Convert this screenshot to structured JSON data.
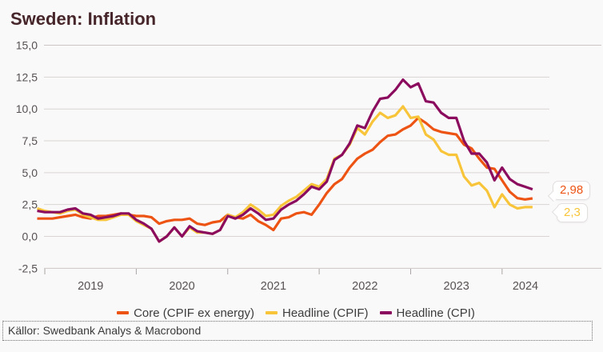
{
  "title": "Sweden: Inflation",
  "source_note": "Källor: Swedbank Analys & Macrobond",
  "colors": {
    "core": "#ed5414",
    "cpif": "#f8c53a",
    "cpi": "#8b0c5e",
    "title_text": "#46262a",
    "axis_text": "#575152",
    "gridline": "#dad4d4",
    "frame_line": "#ccc6c6"
  },
  "legend": {
    "items": [
      {
        "label": "Core (CPIF ex energy)",
        "series": "core"
      },
      {
        "label": "Headline (CPIF)",
        "series": "cpif"
      },
      {
        "label": "Headline (CPI)",
        "series": "cpi"
      }
    ]
  },
  "callouts": [
    {
      "label": "2,98",
      "series": "core"
    },
    {
      "label": "2,3",
      "series": "cpif"
    }
  ],
  "y_axis": {
    "tick_labels": [
      "15,0",
      "12,5",
      "10,0",
      "7,5",
      "5,0",
      "2,5",
      "0,0",
      "-2,5"
    ],
    "tick_values": [
      15,
      12.5,
      10,
      7.5,
      5,
      2.5,
      0,
      -2.5
    ]
  },
  "x_axis": {
    "year_labels": [
      "2019",
      "2020",
      "2021",
      "2022",
      "2023",
      "2024"
    ]
  },
  "chart_data": {
    "type": "line",
    "title": "Sweden: Inflation",
    "unit": "percent, year-over-year",
    "ylim": [
      -2.5,
      15
    ],
    "grid": true,
    "legend_position": "bottom",
    "last_value_labels": {
      "core": "2,98",
      "cpif": "2,3"
    },
    "x": [
      "2018-12",
      "2019-01",
      "2019-02",
      "2019-03",
      "2019-04",
      "2019-05",
      "2019-06",
      "2019-07",
      "2019-08",
      "2019-09",
      "2019-10",
      "2019-11",
      "2019-12",
      "2020-01",
      "2020-02",
      "2020-03",
      "2020-04",
      "2020-05",
      "2020-06",
      "2020-07",
      "2020-08",
      "2020-09",
      "2020-10",
      "2020-11",
      "2020-12",
      "2021-01",
      "2021-02",
      "2021-03",
      "2021-04",
      "2021-05",
      "2021-06",
      "2021-07",
      "2021-08",
      "2021-09",
      "2021-10",
      "2021-11",
      "2021-12",
      "2022-01",
      "2022-02",
      "2022-03",
      "2022-04",
      "2022-05",
      "2022-06",
      "2022-07",
      "2022-08",
      "2022-09",
      "2022-10",
      "2022-11",
      "2022-12",
      "2023-01",
      "2023-02",
      "2023-03",
      "2023-04",
      "2023-05",
      "2023-06",
      "2023-07",
      "2023-08",
      "2023-09",
      "2023-10",
      "2023-11",
      "2023-12",
      "2024-01",
      "2024-02",
      "2024-03",
      "2024-04",
      "2024-05"
    ],
    "series": [
      {
        "name": "Core (CPIF ex energy)",
        "key": "core",
        "color": "#ed5414",
        "values": [
          1.4,
          1.4,
          1.4,
          1.5,
          1.6,
          1.7,
          1.5,
          1.4,
          1.6,
          1.6,
          1.7,
          1.8,
          1.7,
          1.6,
          1.6,
          1.5,
          1.0,
          1.2,
          1.3,
          1.3,
          1.4,
          1.0,
          0.9,
          1.1,
          1.2,
          1.7,
          1.5,
          1.4,
          1.7,
          1.2,
          0.9,
          0.5,
          1.4,
          1.5,
          1.8,
          1.9,
          1.7,
          2.5,
          3.4,
          4.1,
          4.5,
          5.4,
          6.1,
          6.5,
          6.8,
          7.4,
          7.9,
          8.0,
          8.4,
          8.7,
          9.3,
          8.9,
          8.4,
          8.2,
          8.1,
          8.0,
          7.2,
          6.9,
          6.1,
          5.4,
          5.3,
          4.4,
          3.5,
          3.0,
          2.9,
          2.98
        ]
      },
      {
        "name": "Headline (CPIF)",
        "key": "cpif",
        "color": "#f8c53a",
        "values": [
          2.2,
          2.0,
          1.9,
          1.8,
          2.0,
          2.1,
          1.7,
          1.5,
          1.3,
          1.3,
          1.5,
          1.7,
          1.7,
          1.2,
          0.9,
          0.6,
          -0.4,
          0.0,
          0.7,
          0.0,
          0.7,
          0.3,
          0.3,
          0.2,
          0.5,
          1.7,
          1.5,
          1.9,
          2.5,
          2.1,
          1.6,
          1.7,
          2.4,
          2.8,
          3.1,
          3.6,
          4.1,
          3.9,
          4.5,
          6.1,
          6.4,
          7.2,
          8.5,
          8.0,
          9.0,
          9.7,
          9.3,
          9.5,
          10.2,
          9.3,
          9.4,
          8.0,
          7.6,
          6.7,
          6.4,
          6.4,
          4.7,
          4.0,
          4.2,
          3.6,
          2.3,
          3.3,
          2.5,
          2.2,
          2.3,
          2.3
        ]
      },
      {
        "name": "Headline (CPI)",
        "key": "cpi",
        "color": "#8b0c5e",
        "values": [
          2.0,
          1.9,
          1.9,
          1.9,
          2.1,
          2.2,
          1.8,
          1.7,
          1.4,
          1.5,
          1.6,
          1.8,
          1.8,
          1.3,
          1.0,
          0.6,
          -0.4,
          0.0,
          0.7,
          0.0,
          0.8,
          0.4,
          0.3,
          0.2,
          0.5,
          1.6,
          1.4,
          1.7,
          2.2,
          1.8,
          1.3,
          1.4,
          2.1,
          2.5,
          2.8,
          3.3,
          3.9,
          3.7,
          4.3,
          6.0,
          6.4,
          7.3,
          8.7,
          8.5,
          9.8,
          10.8,
          10.9,
          11.5,
          12.3,
          11.7,
          12.0,
          10.6,
          10.5,
          9.7,
          9.3,
          9.3,
          7.5,
          6.5,
          6.5,
          5.8,
          4.4,
          5.4,
          4.5,
          4.1,
          3.9,
          3.7
        ]
      }
    ]
  }
}
